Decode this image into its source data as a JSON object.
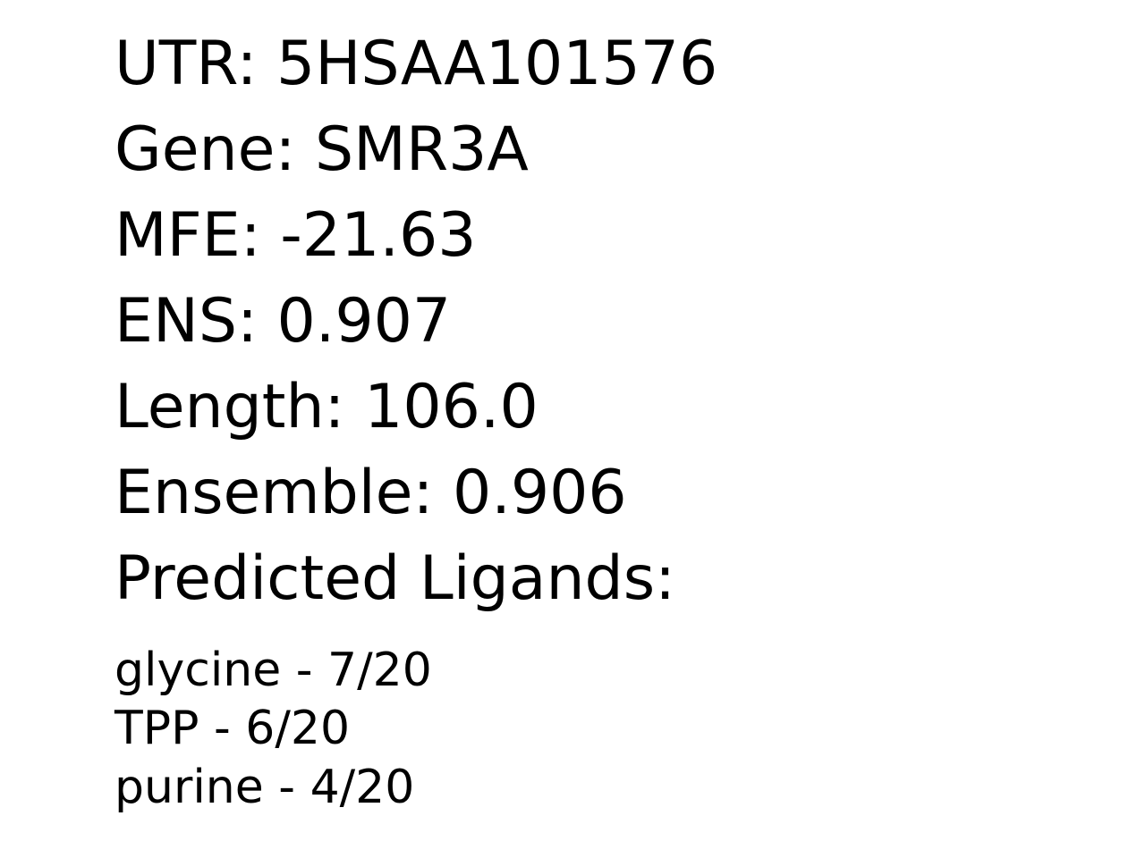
{
  "fields": {
    "utr": "UTR: 5HSAA101576",
    "gene": "Gene: SMR3A",
    "mfe": "MFE: -21.63",
    "ens": "ENS: 0.907",
    "length": "Length: 106.0",
    "ensemble": "Ensemble: 0.906",
    "ligands_heading": "Predicted Ligands:"
  },
  "ligands": [
    "glycine - 7/20",
    "TPP - 6/20",
    "purine - 4/20"
  ]
}
